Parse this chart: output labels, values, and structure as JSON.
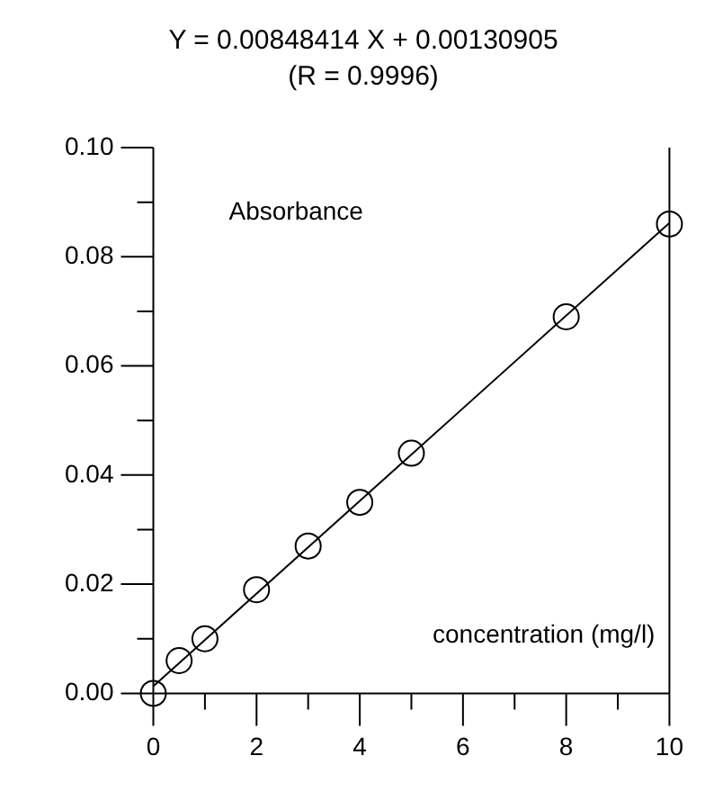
{
  "chart_data": {
    "type": "scatter",
    "title": "Y = 0.00848414 X + 0.00130905",
    "subtitle": "(R = 0.9996)",
    "xlabel": "concentration (mg/l)",
    "ylabel": "Absorbance",
    "xlim": [
      0,
      10
    ],
    "ylim": [
      0,
      0.1
    ],
    "xticks": [
      0,
      {
        "value": 1,
        "label": null
      },
      2,
      {
        "value": 3,
        "label": null
      },
      4,
      {
        "value": 5,
        "label": null
      },
      6,
      {
        "value": 7,
        "label": null
      },
      8,
      {
        "value": 9,
        "label": null
      },
      10
    ],
    "yticks": [
      {
        "value": 0,
        "label": "0.00"
      },
      {
        "value": 0.01,
        "label": null
      },
      {
        "value": 0.02,
        "label": "0.02"
      },
      {
        "value": 0.03,
        "label": null
      },
      {
        "value": 0.04,
        "label": "0.04"
      },
      {
        "value": 0.05,
        "label": null
      },
      {
        "value": 0.06,
        "label": "0.06"
      },
      {
        "value": 0.07,
        "label": null
      },
      {
        "value": 0.08,
        "label": "0.08"
      },
      {
        "value": 0.09,
        "label": null
      },
      {
        "value": 0.1,
        "label": "0.10"
      }
    ],
    "grid": false,
    "legend": false,
    "series": [
      {
        "marker": "circle",
        "color": "#000000",
        "x": [
          0,
          0.5,
          1,
          2,
          3,
          4,
          5,
          8,
          10
        ],
        "values": [
          0,
          0.006,
          0.01,
          0.019,
          0.027,
          0.035,
          0.044,
          0.069,
          0.086
        ]
      },
      {
        "type": "line",
        "marker": "none",
        "color": "#000000",
        "x": [
          0,
          10
        ],
        "values": [
          0.0013,
          0.0862
        ]
      }
    ]
  }
}
